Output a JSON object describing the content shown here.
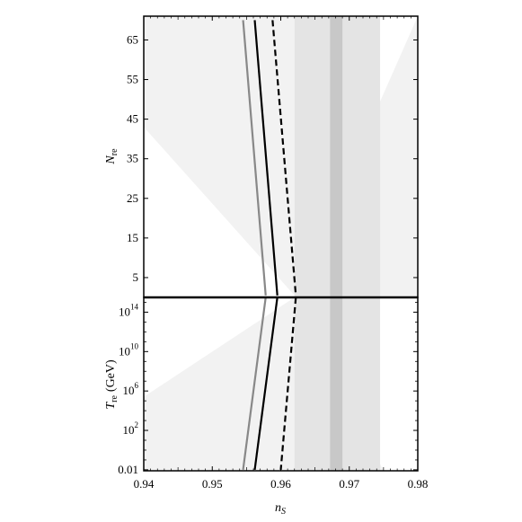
{
  "chart_data": [
    {
      "type": "line",
      "panel": "top",
      "ylabel": "N",
      "ylabel_sub": "re",
      "xlim": [
        0.94,
        0.98
      ],
      "ylim": [
        0,
        71
      ],
      "yticks": [
        5,
        15,
        25,
        35,
        45,
        55,
        65
      ],
      "ytick_labels": [
        "5",
        "15",
        "25",
        "35",
        "45",
        "55",
        "65"
      ],
      "bands": [
        {
          "name": "outer",
          "x": [
            0.962,
            0.9745
          ],
          "color": "#e4e4e4"
        },
        {
          "name": "inner",
          "x": [
            0.9672,
            0.969
          ],
          "color": "#c8c8c8"
        }
      ],
      "excluded_regions": [
        {
          "name": "left",
          "points": [
            [
              0.94,
              71
            ],
            [
              0.94,
              43
            ],
            [
              0.962,
              0.5
            ],
            [
              0.962,
              71
            ]
          ],
          "color": "#f2f2f2"
        },
        {
          "name": "right",
          "points": [
            [
              0.962,
              0.5
            ],
            [
              0.98,
              71
            ],
            [
              0.98,
              0
            ],
            [
              0.962,
              0
            ]
          ],
          "color": "#f2f2f2"
        }
      ],
      "series": [
        {
          "style": "solid",
          "color": "#888888",
          "x": [
            0.9545,
            0.9578
          ],
          "y": [
            70,
            0.5
          ]
        },
        {
          "style": "solid",
          "color": "#000000",
          "x": [
            0.9562,
            0.9595
          ],
          "y": [
            70,
            0.5
          ]
        },
        {
          "style": "dashed",
          "color": "#000000",
          "x": [
            0.9588,
            0.9622
          ],
          "y": [
            70,
            0.5
          ]
        }
      ]
    },
    {
      "type": "line",
      "panel": "bottom",
      "xlabel": "n",
      "xlabel_sub": "S",
      "ylabel": "T",
      "ylabel_sub": "re",
      "ylabel_unit": "(GeV)",
      "xlim": [
        0.94,
        0.98
      ],
      "ylim_log10": [
        -2.1,
        15.5
      ],
      "xticks": [
        0.94,
        0.95,
        0.96,
        0.97,
        0.98
      ],
      "xtick_labels": [
        "0.94",
        "0.95",
        "0.96",
        "0.97",
        "0.98"
      ],
      "yticks_log10": [
        -2,
        2,
        6,
        10,
        14
      ],
      "ytick_labels": [
        {
          "base": "0.01",
          "exp": ""
        },
        {
          "base": "10",
          "exp": "2"
        },
        {
          "base": "10",
          "exp": "6"
        },
        {
          "base": "10",
          "exp": "10"
        },
        {
          "base": "10",
          "exp": "14"
        }
      ],
      "bands": [
        {
          "name": "outer",
          "x": [
            0.962,
            0.9745
          ],
          "color": "#e4e4e4"
        },
        {
          "name": "inner",
          "x": [
            0.9672,
            0.969
          ],
          "color": "#c8c8c8"
        }
      ],
      "excluded_regions": [
        {
          "name": "left",
          "points": [
            [
              0.94,
              5.4
            ],
            [
              0.962,
              15.5
            ],
            [
              0.962,
              -2.1
            ],
            [
              0.94,
              -2.1
            ]
          ],
          "color": "#f2f2f2"
        },
        {
          "name": "right",
          "points": [
            [
              0.962,
              15.5
            ],
            [
              0.975,
              -2.1
            ],
            [
              0.962,
              -2.1
            ]
          ],
          "color": "#f2f2f2"
        }
      ],
      "series": [
        {
          "style": "solid",
          "color": "#888888",
          "x": [
            0.9578,
            0.9545
          ],
          "y_log10": [
            15.5,
            -2
          ]
        },
        {
          "style": "solid",
          "color": "#000000",
          "x": [
            0.9595,
            0.9562
          ],
          "y_log10": [
            15.5,
            -2
          ]
        },
        {
          "style": "dashed",
          "color": "#000000",
          "x": [
            0.9622,
            0.96
          ],
          "y_log10": [
            15.5,
            -2
          ]
        }
      ]
    }
  ]
}
